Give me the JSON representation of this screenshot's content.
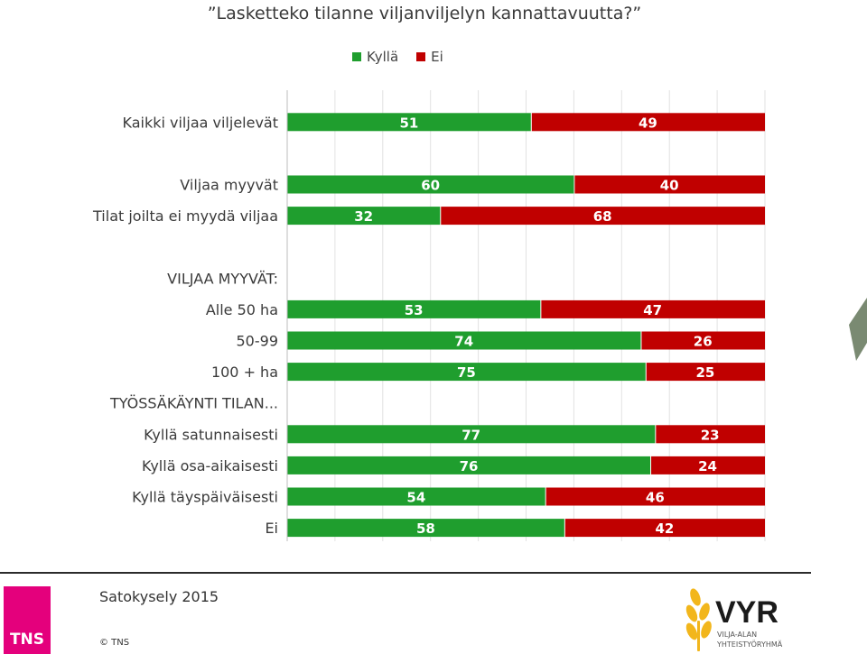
{
  "title": "”Lasketteko tilanne viljanviljelyn kannattavuutta?”",
  "legend": [
    {
      "label": "Kyllä",
      "color": "#1f9e2e"
    },
    {
      "label": "Ei",
      "color": "#c00000"
    }
  ],
  "chart_data": {
    "type": "bar",
    "orientation": "horizontal",
    "stacked": true,
    "xlim": [
      0,
      100
    ],
    "grid": true,
    "legend_position": "top",
    "rows": [
      {
        "label": "Kaikki viljaa viljelevät",
        "kylla": 51,
        "ei": 49
      },
      {
        "label": "",
        "kylla": null,
        "ei": null
      },
      {
        "label": "Viljaa myyvät",
        "kylla": 60,
        "ei": 40
      },
      {
        "label": "Tilat joilta ei myydä viljaa",
        "kylla": 32,
        "ei": 68
      },
      {
        "label": "",
        "kylla": null,
        "ei": null
      },
      {
        "label": "VILJAA MYYVÄT:",
        "kylla": null,
        "ei": null
      },
      {
        "label": "Alle 50 ha",
        "kylla": 53,
        "ei": 47
      },
      {
        "label": "50-99",
        "kylla": 74,
        "ei": 26
      },
      {
        "label": "100 + ha",
        "kylla": 75,
        "ei": 25
      },
      {
        "label": "TYÖSSÄKÄYNTI TILAN...",
        "kylla": null,
        "ei": null
      },
      {
        "label": "Kyllä satunnaisesti",
        "kylla": 77,
        "ei": 23
      },
      {
        "label": "Kyllä osa-aikaisesti",
        "kylla": 76,
        "ei": 24
      },
      {
        "label": "Kyllä täyspäiväisesti",
        "kylla": 54,
        "ei": 46
      },
      {
        "label": "Ei",
        "kylla": 58,
        "ei": 42
      }
    ],
    "series": [
      {
        "name": "Kyllä",
        "color": "#1f9e2e"
      },
      {
        "name": "Ei",
        "color": "#c00000"
      }
    ]
  },
  "footer": {
    "source": "Satokysely 2015",
    "copyright": "© TNS",
    "tns_logo": "TNS",
    "vyr_logo": "VYR",
    "vyr_line1": "VILJA-ALAN",
    "vyr_line2": "YHTEISTYÖRYHMÄ"
  }
}
